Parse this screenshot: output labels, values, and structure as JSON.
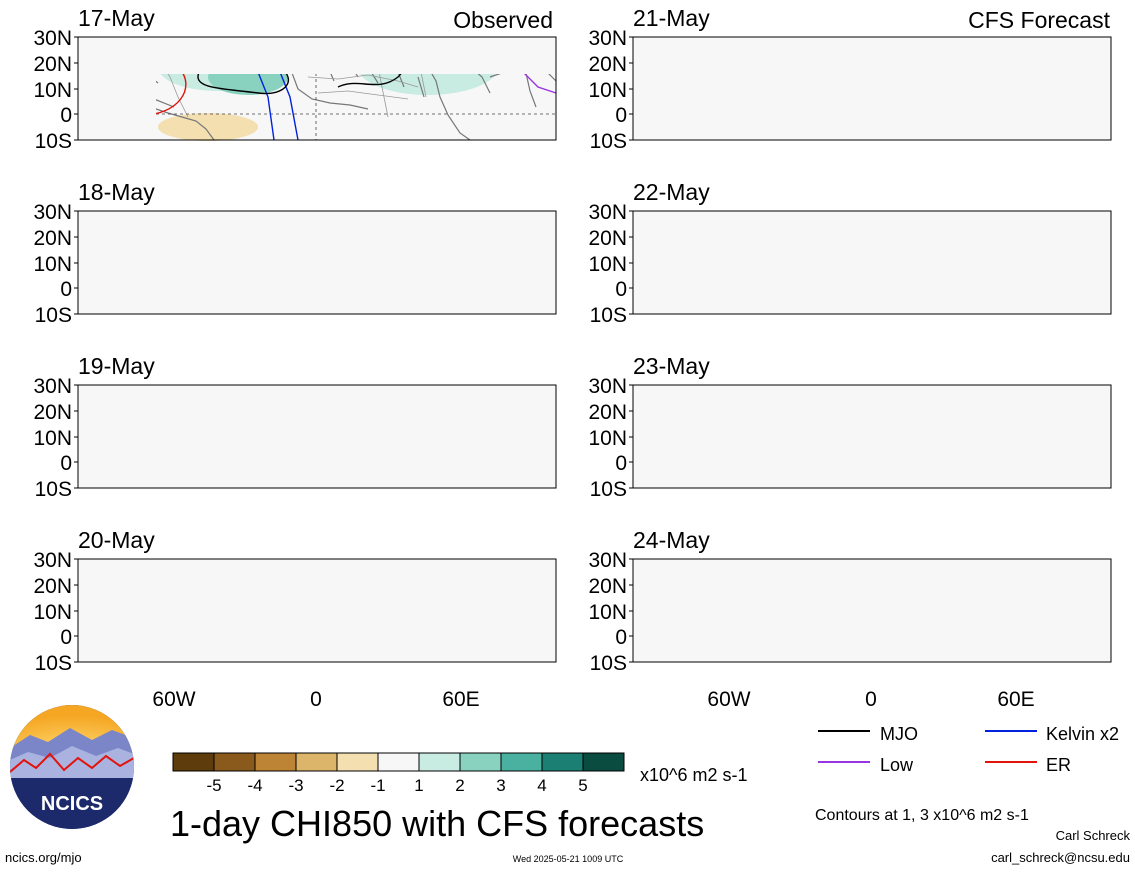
{
  "panels_left_header": "Observed",
  "panels_right_header": "CFS Forecast",
  "panels": [
    {
      "date": "17-May",
      "side": "observed"
    },
    {
      "date": "18-May",
      "side": "observed"
    },
    {
      "date": "19-May",
      "side": "observed"
    },
    {
      "date": "20-May",
      "side": "observed"
    },
    {
      "date": "21-May",
      "side": "forecast"
    },
    {
      "date": "22-May",
      "side": "forecast"
    },
    {
      "date": "23-May",
      "side": "forecast"
    },
    {
      "date": "24-May",
      "side": "forecast"
    }
  ],
  "lat_labels": [
    "30N",
    "20N",
    "10N",
    "0",
    "10S"
  ],
  "lon_labels": [
    "60W",
    "0",
    "60E"
  ],
  "colorbar": {
    "tick_labels": [
      "-5",
      "-4",
      "-3",
      "-2",
      "-1",
      "1",
      "2",
      "3",
      "4",
      "5"
    ],
    "units": "x10^6 m2 s-1",
    "colors": [
      "#5e3c0b",
      "#8a5a1c",
      "#be8435",
      "#dcb46a",
      "#f3dfb0",
      "#f7f7f7",
      "#c8ebe2",
      "#89d2c0",
      "#4ab0a0",
      "#1b7f74",
      "#0a4d40"
    ]
  },
  "legend": {
    "items": [
      {
        "label": "MJO",
        "color": "#000000"
      },
      {
        "label": "Kelvin x2",
        "color": "#0022dd"
      },
      {
        "label": "Low",
        "color": "#9a33e0"
      },
      {
        "label": "ER",
        "color": "#e3120b"
      }
    ],
    "contours_note": "Contours at 1, 3 x10^6 m2 s-1"
  },
  "title": "1-day CHI850 with CFS forecasts",
  "footer": {
    "url": "ncics.org/mjo",
    "timestamp": "Wed 2025-05-21 1009 UTC",
    "author": "Carl Schreck",
    "email": "carl_schreck@ncsu.edu"
  },
  "logo": {
    "text": "NCICS"
  }
}
